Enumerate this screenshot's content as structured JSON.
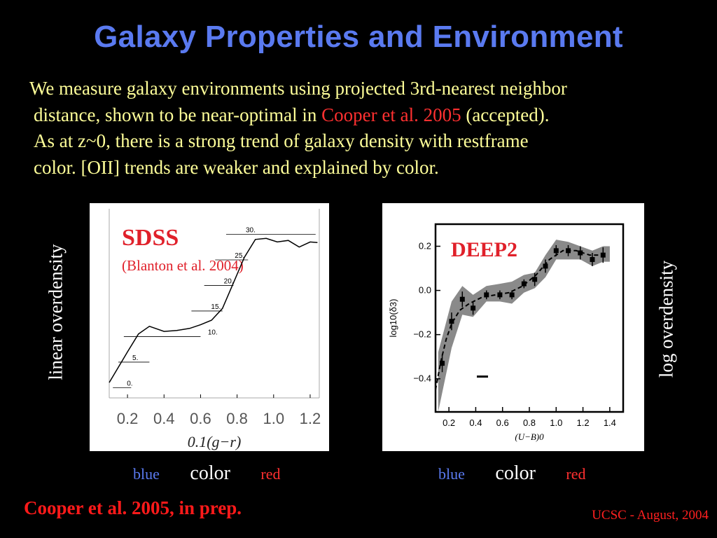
{
  "slide": {
    "title": "Galaxy Properties and Environment",
    "paragraph": {
      "line1": "We measure galaxy environments using projected 3rd-nearest neighbor",
      "line2_before": "distance, shown to be near-optimal in ",
      "line2_citation": "Cooper et al. 2005",
      "line2_after": " (accepted).",
      "line3": "As at z~0, there is a strong trend of galaxy density with restframe",
      "line4": "color.  [OII] trends are weaker and explained by color."
    },
    "left_ylabel": "linear overdensity",
    "right_ylabel": "log overdensity",
    "left_axis": {
      "blue": "blue",
      "color": "color",
      "red": "red"
    },
    "right_axis": {
      "blue": "blue",
      "color": "color",
      "red": "red"
    },
    "reference": "Cooper et al. 2005, in prep.",
    "footer": "UCSC - August, 2004",
    "colors": {
      "title": "#5a7af0",
      "text": "#ffff99",
      "citation": "#ff3030",
      "background": "#000000"
    }
  },
  "chart_data": [
    {
      "type": "line",
      "title": "SDSS",
      "subtitle": "(Blanton et al. 2004)",
      "xlabel": "0.1(g−r)",
      "xlim": [
        0.1,
        1.25
      ],
      "ylim": [
        -2,
        35
      ],
      "xticks": [
        "0.2",
        "0.4",
        "0.6",
        "0.8",
        "1.0",
        "1.2"
      ],
      "xtick_values": [
        0.2,
        0.4,
        0.6,
        0.8,
        1.0,
        1.2
      ],
      "contour_labels": [
        "0.",
        "5.",
        "10.",
        "15.",
        "20.",
        "25.",
        "30."
      ],
      "contour_levels": [
        0,
        5,
        10,
        15,
        20,
        25,
        30
      ],
      "series": [
        {
          "x": [
            0.1,
            0.2,
            0.26,
            0.32,
            0.4,
            0.47,
            0.54,
            0.6,
            0.66,
            0.72,
            0.78,
            0.84,
            0.9,
            0.96,
            1.02,
            1.08,
            1.14,
            1.2,
            1.24
          ],
          "y": [
            1.0,
            7.0,
            10.5,
            12.0,
            11.0,
            11.2,
            11.6,
            12.3,
            13.2,
            15.5,
            20.5,
            25.5,
            29.0,
            29.2,
            28.5,
            28.8,
            27.5,
            28.5,
            28.4
          ]
        }
      ]
    },
    {
      "type": "line",
      "title": "DEEP2",
      "xlabel": "(U−B)0",
      "ylabel": "log10(δ3)",
      "xlim": [
        0.1,
        1.5
      ],
      "ylim": [
        -0.55,
        0.3
      ],
      "xticks": [
        "0.2",
        "0.4",
        "0.6",
        "0.8",
        "1.0",
        "1.2",
        "1.4"
      ],
      "xtick_values": [
        0.2,
        0.4,
        0.6,
        0.8,
        1.0,
        1.2,
        1.4
      ],
      "yticks": [
        "−0.4",
        "−0.2",
        "0.0",
        "0.2"
      ],
      "ytick_values": [
        -0.4,
        -0.2,
        0.0,
        0.2
      ],
      "points": {
        "x": [
          0.15,
          0.22,
          0.3,
          0.38,
          0.48,
          0.58,
          0.67,
          0.76,
          0.84,
          0.92,
          1.0,
          1.09,
          1.18,
          1.27,
          1.35
        ],
        "y": [
          -0.33,
          -0.14,
          -0.04,
          -0.08,
          -0.02,
          -0.02,
          -0.02,
          0.03,
          0.05,
          0.11,
          0.18,
          0.18,
          0.17,
          0.14,
          0.16
        ]
      },
      "errorbars": [
        0.04,
        0.04,
        0.035,
        0.03,
        0.02,
        0.02,
        0.02,
        0.02,
        0.03,
        0.03,
        0.025,
        0.025,
        0.03,
        0.03,
        0.035
      ],
      "band_upper": [
        -0.28,
        -0.05,
        0.02,
        -0.02,
        0.02,
        0.03,
        0.04,
        0.07,
        0.08,
        0.16,
        0.23,
        0.22,
        0.2,
        0.18,
        0.2,
        0.2
      ],
      "band_lower": [
        -0.55,
        -0.26,
        -0.11,
        -0.12,
        -0.05,
        -0.05,
        -0.06,
        -0.01,
        0.01,
        0.06,
        0.14,
        0.14,
        0.14,
        0.11,
        0.13,
        0.13
      ],
      "band_x": [
        0.12,
        0.22,
        0.3,
        0.38,
        0.48,
        0.58,
        0.67,
        0.76,
        0.84,
        0.92,
        1.0,
        1.09,
        1.18,
        1.27,
        1.35,
        1.4
      ],
      "dashed_fit": {
        "x": [
          0.1,
          0.14,
          0.18,
          0.22,
          0.28,
          0.35,
          0.45,
          0.55,
          0.65,
          0.75,
          0.85,
          0.95,
          1.05,
          1.15,
          1.25,
          1.35
        ],
        "y": [
          -0.45,
          -0.32,
          -0.22,
          -0.15,
          -0.09,
          -0.06,
          -0.03,
          -0.02,
          -0.01,
          0.02,
          0.07,
          0.14,
          0.18,
          0.18,
          0.16,
          0.16
        ]
      },
      "marker": {
        "x": 0.45,
        "y": -0.39
      }
    }
  ]
}
